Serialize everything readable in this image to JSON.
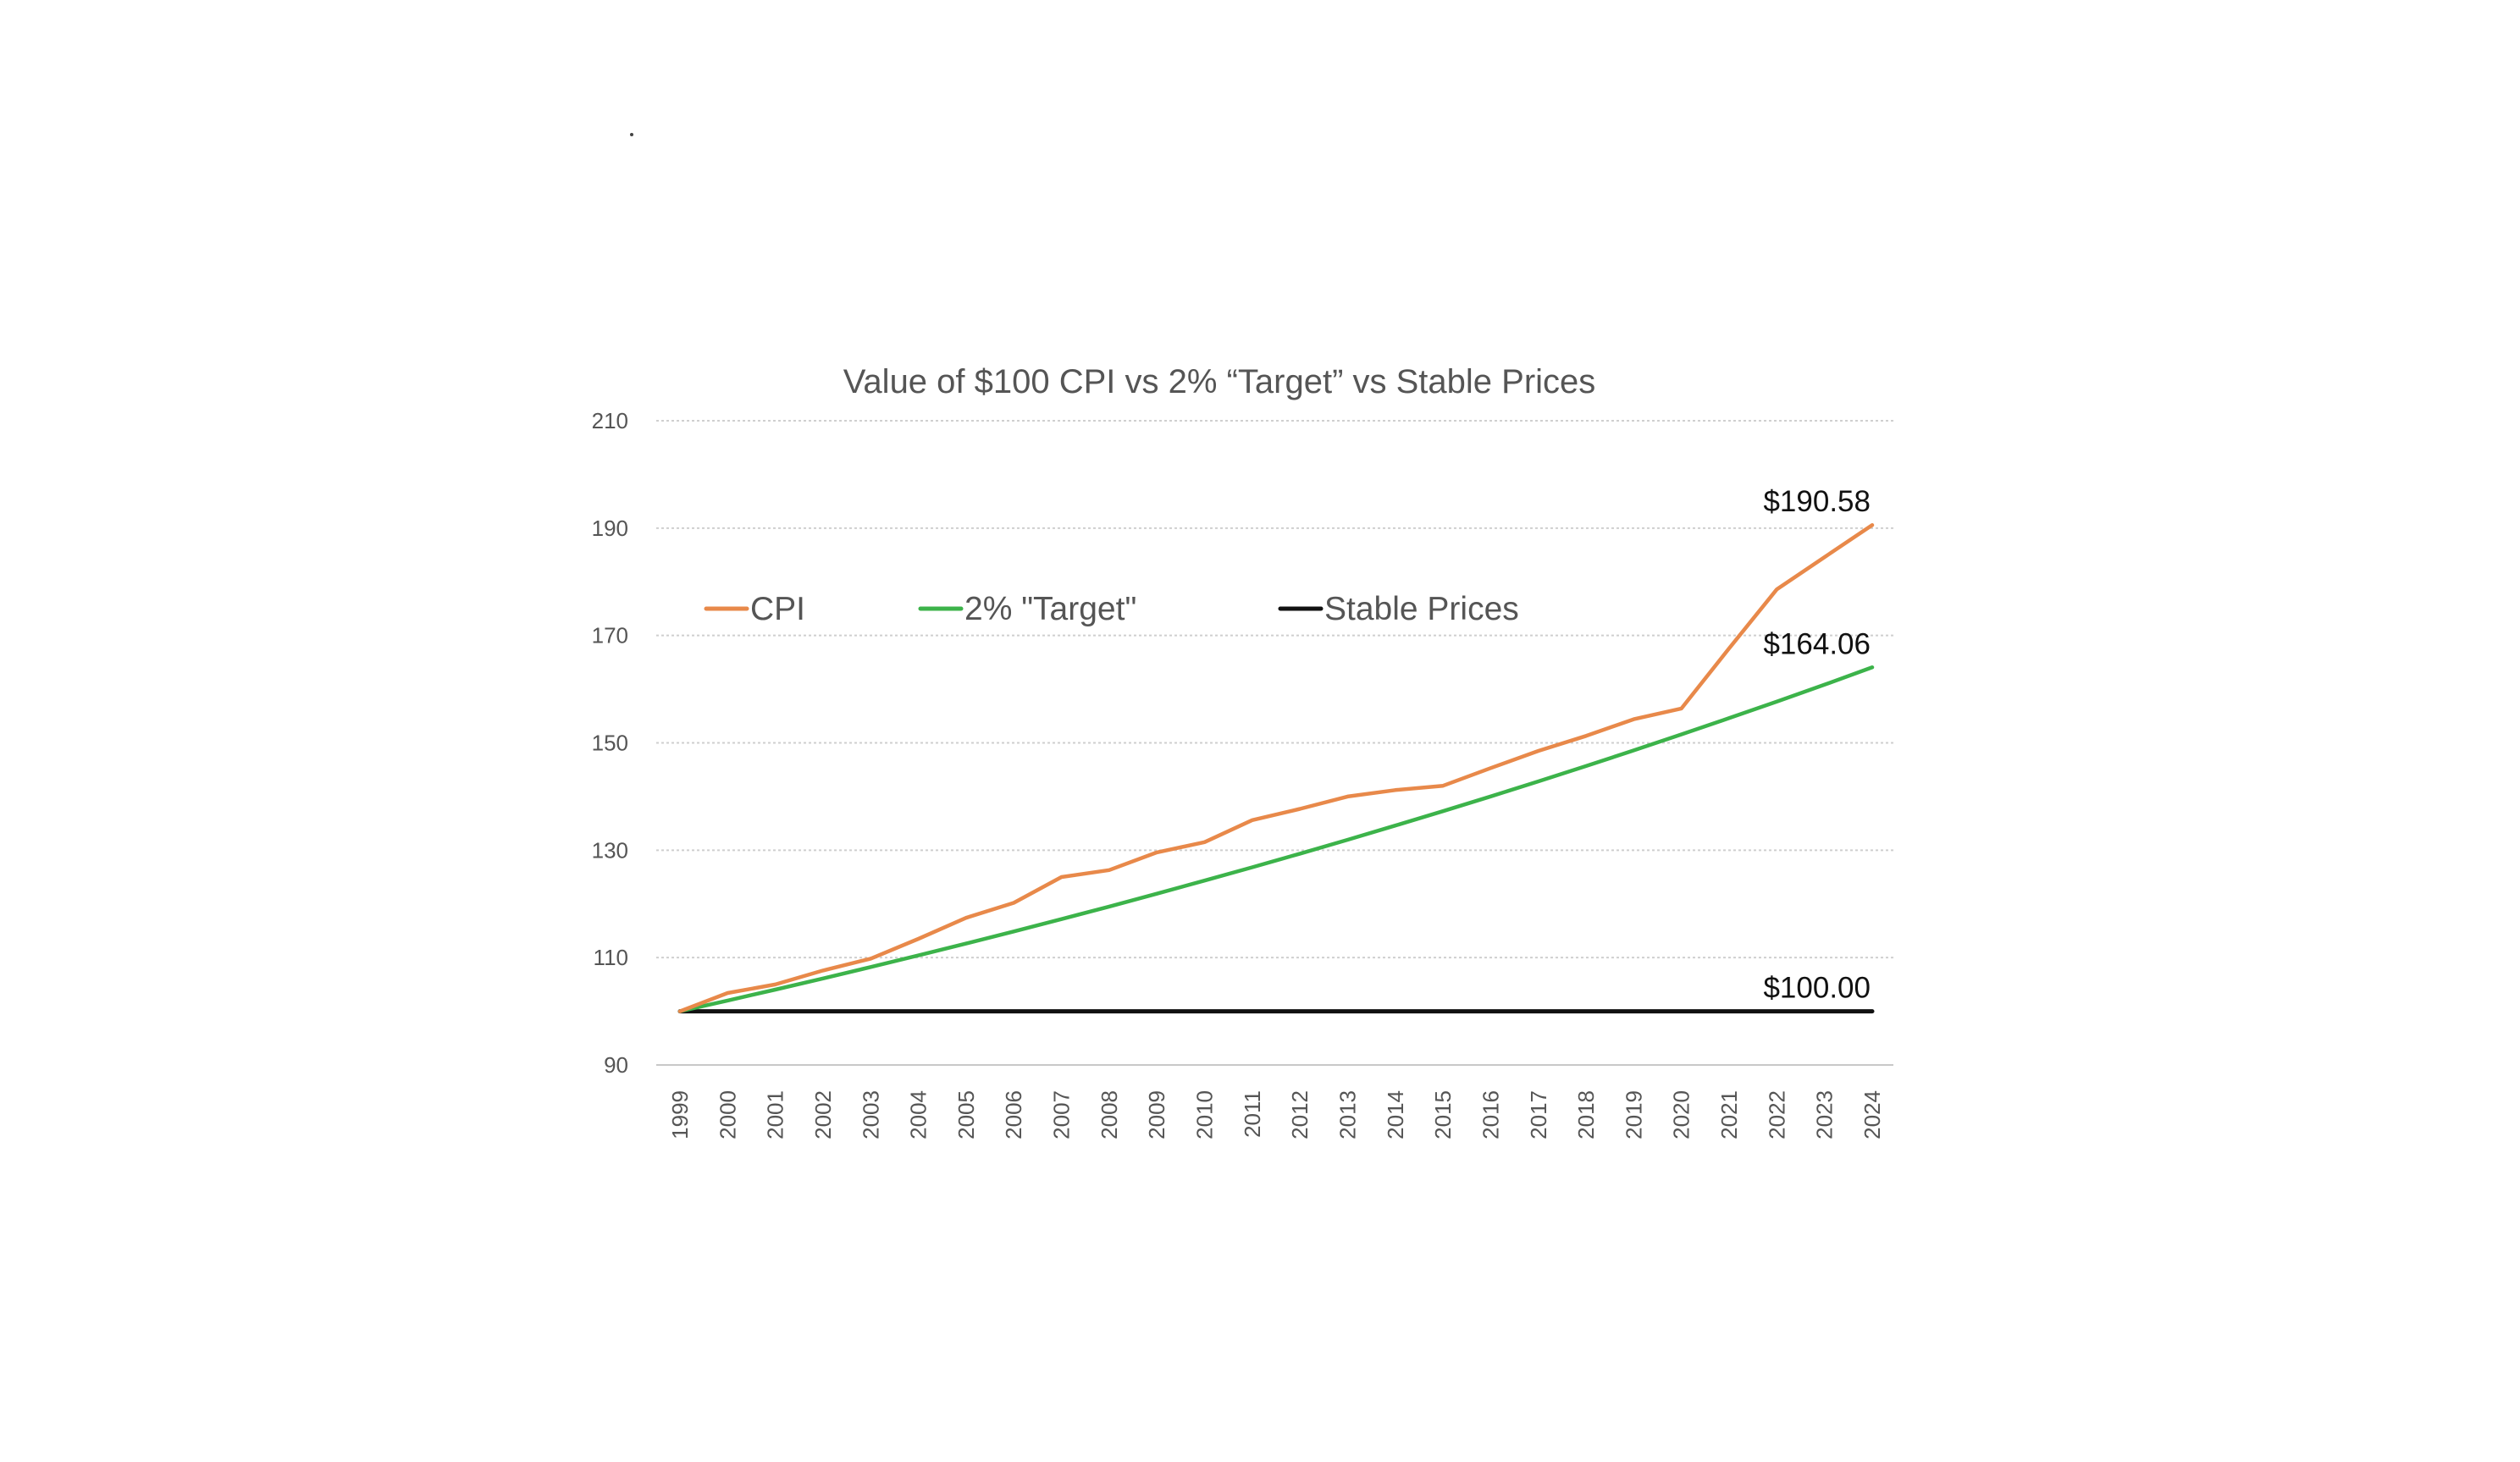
{
  "chart_data": {
    "type": "line",
    "title": "Value of $100 CPI vs 2% “Target” vs Stable Prices",
    "xlabel": "",
    "ylabel": "",
    "ylim": [
      90,
      210
    ],
    "yticks": [
      90,
      110,
      130,
      150,
      170,
      190,
      210
    ],
    "grid": true,
    "legend_position": "top-left",
    "categories": [
      "1999",
      "2000",
      "2001",
      "2002",
      "2003",
      "2004",
      "2005",
      "2006",
      "2007",
      "2008",
      "2009",
      "2010",
      "2011",
      "2012",
      "2013",
      "2014",
      "2015",
      "2016",
      "2017",
      "2018",
      "2019",
      "2020",
      "2021",
      "2022",
      "2023",
      "2024"
    ],
    "series": [
      {
        "name": "CPI",
        "color": "#e8894a",
        "values": [
          100.0,
          103.4,
          105.0,
          107.6,
          109.8,
          113.5,
          117.4,
          120.2,
          125.0,
          126.3,
          129.6,
          131.5,
          135.6,
          137.7,
          140.0,
          141.2,
          142.0,
          145.3,
          148.5,
          151.3,
          154.4,
          156.4,
          167.6,
          178.6,
          184.6,
          190.58
        ]
      },
      {
        "name": "2% \"Target\"",
        "color": "#3cb34a",
        "values": [
          100.0,
          102.0,
          104.04,
          106.12,
          108.24,
          110.41,
          112.62,
          114.87,
          117.17,
          119.51,
          121.9,
          124.34,
          126.82,
          129.36,
          131.95,
          134.59,
          137.28,
          140.02,
          142.82,
          145.68,
          148.59,
          151.57,
          154.6,
          157.69,
          160.84,
          164.06
        ]
      },
      {
        "name": "Stable Prices",
        "color": "#111111",
        "values": [
          100,
          100,
          100,
          100,
          100,
          100,
          100,
          100,
          100,
          100,
          100,
          100,
          100,
          100,
          100,
          100,
          100,
          100,
          100,
          100,
          100,
          100,
          100,
          100,
          100,
          100
        ]
      }
    ],
    "annotations": [
      {
        "series": "CPI",
        "text": "$190.58"
      },
      {
        "series": "2% \"Target\"",
        "text": "$164.06"
      },
      {
        "series": "Stable Prices",
        "text": "$100.00"
      }
    ]
  }
}
